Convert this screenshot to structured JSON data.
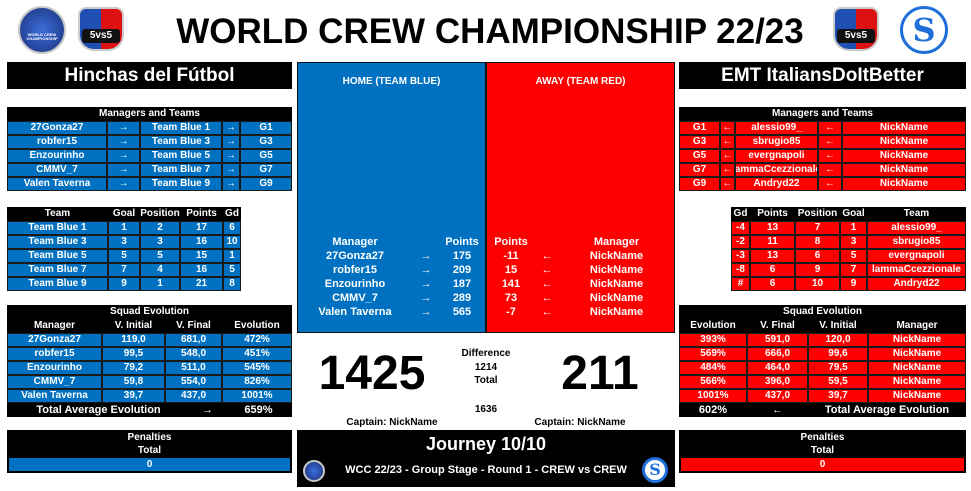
{
  "header": {
    "title": "WORLD CREW CHAMPIONSHIP 22/23",
    "logo_text": "WORLD CREW CHAMPIONSHIP",
    "badge": "5vs5",
    "s_logo": "S"
  },
  "home": {
    "team_name": "Hinchas del Fútbol",
    "managers_teams": {
      "title": "Managers and Teams",
      "rows": [
        [
          "27Gonza27",
          "→",
          "Team Blue 1",
          "→",
          "G1"
        ],
        [
          "robfer15",
          "→",
          "Team Blue 3",
          "→",
          "G3"
        ],
        [
          "Enzourinho",
          "→",
          "Team Blue 5",
          "→",
          "G5"
        ],
        [
          "CMMV_7",
          "→",
          "Team Blue 7",
          "→",
          "G7"
        ],
        [
          "Valen Taverna",
          "→",
          "Team Blue 9",
          "→",
          "G9"
        ]
      ]
    },
    "teams": {
      "header": [
        "Team",
        "Goal",
        "Position",
        "Points",
        "Gd"
      ],
      "rows": [
        [
          "Team Blue 1",
          "1",
          "2",
          "17",
          "6"
        ],
        [
          "Team Blue 3",
          "3",
          "3",
          "16",
          "10"
        ],
        [
          "Team Blue 5",
          "5",
          "5",
          "15",
          "1"
        ],
        [
          "Team Blue 7",
          "7",
          "4",
          "16",
          "5"
        ],
        [
          "Team Blue 9",
          "9",
          "1",
          "21",
          "8"
        ]
      ]
    },
    "squad_evolution": {
      "title": "Squad Evolution",
      "header": [
        "Manager",
        "V. Initial",
        "V. Final",
        "Evolution"
      ],
      "rows": [
        [
          "27Gonza27",
          "119,0",
          "681,0",
          "472%"
        ],
        [
          "robfer15",
          "99,5",
          "548,0",
          "451%"
        ],
        [
          "Enzourinho",
          "79,2",
          "511,0",
          "545%"
        ],
        [
          "CMMV_7",
          "59,8",
          "554,0",
          "826%"
        ],
        [
          "Valen Taverna",
          "39,7",
          "437,0",
          "1001%"
        ]
      ],
      "footer": [
        "Total Average Evolution",
        "→",
        "659%"
      ]
    },
    "penalties": {
      "title": "Penalties",
      "label": "Total",
      "value": "0"
    }
  },
  "away": {
    "team_name": "EMT ItaliansDoItBetter",
    "managers_teams": {
      "title": "Managers and Teams",
      "rows": [
        [
          "G1",
          "←",
          "alessio99_",
          "←",
          "NickName"
        ],
        [
          "G3",
          "←",
          "sbrugio85",
          "←",
          "NickName"
        ],
        [
          "G5",
          "←",
          "evergnapoli",
          "←",
          "NickName"
        ],
        [
          "G7",
          "←",
          "lammaCcezzionale",
          "←",
          "NickName"
        ],
        [
          "G9",
          "←",
          "Andryd22",
          "←",
          "NickName"
        ]
      ]
    },
    "teams": {
      "header": [
        "Gd",
        "Points",
        "Position",
        "Goal",
        "Team"
      ],
      "rows": [
        [
          "-4",
          "13",
          "7",
          "1",
          "alessio99_"
        ],
        [
          "-2",
          "11",
          "8",
          "3",
          "sbrugio85"
        ],
        [
          "-3",
          "13",
          "6",
          "5",
          "evergnapoli"
        ],
        [
          "-8",
          "6",
          "9",
          "7",
          "lammaCcezzionale"
        ],
        [
          "#",
          "6",
          "10",
          "9",
          "Andryd22"
        ]
      ]
    },
    "squad_evolution": {
      "title": "Squad Evolution",
      "header": [
        "Evolution",
        "V. Final",
        "V. Initial",
        "Manager"
      ],
      "rows": [
        [
          "393%",
          "591,0",
          "120,0",
          "NickName"
        ],
        [
          "569%",
          "666,0",
          "99,6",
          "NickName"
        ],
        [
          "484%",
          "464,0",
          "79,5",
          "NickName"
        ],
        [
          "566%",
          "396,0",
          "59,5",
          "NickName"
        ],
        [
          "1001%",
          "437,0",
          "39,7",
          "NickName"
        ]
      ],
      "footer": [
        "602%",
        "←",
        "Total Average Evolution"
      ]
    },
    "penalties": {
      "title": "Penalties",
      "label": "Total",
      "value": "0"
    }
  },
  "match": {
    "home_label": "HOME  (TEAM BLUE)",
    "away_label": "AWAY (TEAM RED)",
    "home_header": [
      "Manager",
      "Points"
    ],
    "away_header": [
      "Points",
      "Manager"
    ],
    "home_rows": [
      [
        "27Gonza27",
        "→",
        "175"
      ],
      [
        "robfer15",
        "→",
        "209"
      ],
      [
        "Enzourinho",
        "→",
        "187"
      ],
      [
        "CMMV_7",
        "→",
        "289"
      ],
      [
        "Valen Taverna",
        "→",
        "565"
      ]
    ],
    "away_rows": [
      [
        "-11",
        "←",
        "NickName"
      ],
      [
        "15",
        "←",
        "NickName"
      ],
      [
        "141",
        "←",
        "NickName"
      ],
      [
        "73",
        "←",
        "NickName"
      ],
      [
        "-7",
        "←",
        "NickName"
      ]
    ],
    "home_score": "1425",
    "away_score": "211",
    "difference_label": "Difference",
    "difference": "1214",
    "total_label": "Total",
    "total": "1636",
    "home_captain": "Captain: NickName",
    "away_captain": "Captain: NickName"
  },
  "footer": {
    "journey": "Journey 10/10",
    "description": "WCC 22/23 - Group Stage - Round 1 - CREW vs CREW"
  }
}
